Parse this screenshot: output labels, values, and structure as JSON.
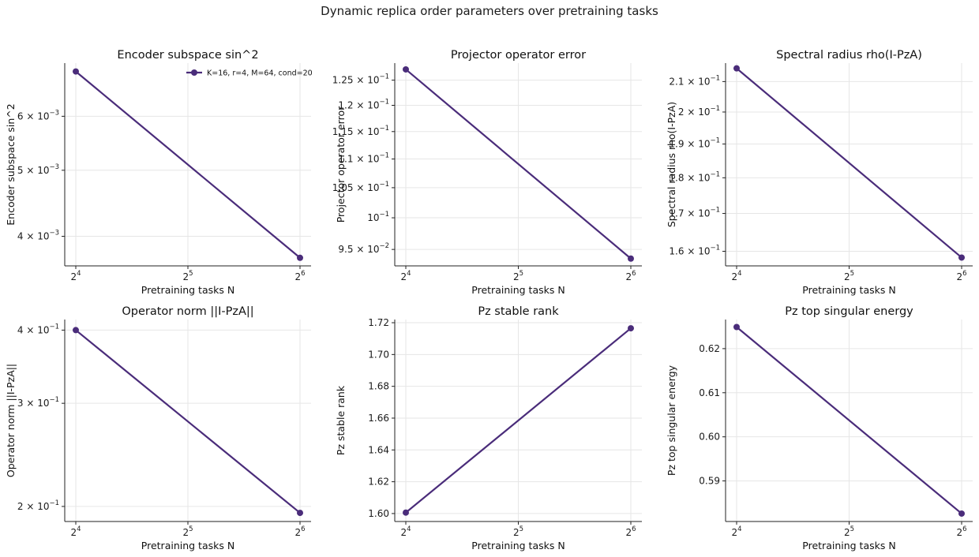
{
  "figure": {
    "title": "Dynamic replica order parameters over pretraining tasks",
    "line_color": "#4a2c7a"
  },
  "chart_data": [
    {
      "type": "line",
      "title": "Encoder subspace sin^2",
      "xlabel": "Pretraining tasks N",
      "ylabel": "Encoder subspace sin^2",
      "xscale": "log2",
      "yscale": "log",
      "xlim": [
        16,
        64
      ],
      "ylim": [
        0.00362,
        0.00718
      ],
      "grid": true,
      "legend_position": "top-right",
      "x_ticks": [
        {
          "value": 16,
          "base": "2",
          "exp": "4"
        },
        {
          "value": 32,
          "base": "2",
          "exp": "5"
        },
        {
          "value": 64,
          "base": "2",
          "exp": "6"
        }
      ],
      "y_ticks": [
        {
          "value": 0.006,
          "mant": "6",
          "base": "10",
          "exp": "−3"
        },
        {
          "value": 0.005,
          "mant": "5",
          "base": "10",
          "exp": "−3"
        },
        {
          "value": 0.004,
          "mant": "4",
          "base": "10",
          "exp": "−3"
        }
      ],
      "series": [
        {
          "name": "K=16, r=4, M=64, cond=20",
          "x": [
            16,
            64
          ],
          "y": [
            0.00698,
            0.00372
          ]
        }
      ]
    },
    {
      "type": "line",
      "title": "Projector operator error",
      "xlabel": "Pretraining tasks N",
      "ylabel": "Projector operator error",
      "xscale": "log2",
      "yscale": "log",
      "xlim": [
        16,
        64
      ],
      "ylim": [
        0.0925,
        0.1285
      ],
      "grid": true,
      "x_ticks": [
        {
          "value": 16,
          "base": "2",
          "exp": "4"
        },
        {
          "value": 32,
          "base": "2",
          "exp": "5"
        },
        {
          "value": 64,
          "base": "2",
          "exp": "6"
        }
      ],
      "y_ticks": [
        {
          "value": 0.125,
          "mant": "1.25",
          "base": "10",
          "exp": "−1"
        },
        {
          "value": 0.12,
          "mant": "1.2",
          "base": "10",
          "exp": "−1"
        },
        {
          "value": 0.115,
          "mant": "1.15",
          "base": "10",
          "exp": "−1"
        },
        {
          "value": 0.11,
          "mant": "1.1",
          "base": "10",
          "exp": "−1"
        },
        {
          "value": 0.105,
          "mant": "1.05",
          "base": "10",
          "exp": "−1"
        },
        {
          "value": 0.1,
          "mant": "",
          "base": "10",
          "exp": "−1"
        },
        {
          "value": 0.095,
          "mant": "9.5",
          "base": "10",
          "exp": "−2"
        }
      ],
      "series": [
        {
          "x": [
            16,
            64
          ],
          "y": [
            0.1272,
            0.0936
          ]
        }
      ]
    },
    {
      "type": "line",
      "title": "Spectral radius rho(I-PzA)",
      "xlabel": "Pretraining tasks N",
      "ylabel": "Spectral radius rho(I-PzA)",
      "xscale": "log2",
      "yscale": "log",
      "xlim": [
        16,
        64
      ],
      "ylim": [
        0.1563,
        0.2163
      ],
      "grid": true,
      "x_ticks": [
        {
          "value": 16,
          "base": "2",
          "exp": "4"
        },
        {
          "value": 32,
          "base": "2",
          "exp": "5"
        },
        {
          "value": 64,
          "base": "2",
          "exp": "6"
        }
      ],
      "y_ticks": [
        {
          "value": 0.21,
          "mant": "2.1",
          "base": "10",
          "exp": "−1"
        },
        {
          "value": 0.2,
          "mant": "2",
          "base": "10",
          "exp": "−1"
        },
        {
          "value": 0.19,
          "mant": "1.9",
          "base": "10",
          "exp": "−1"
        },
        {
          "value": 0.18,
          "mant": "1.8",
          "base": "10",
          "exp": "−1"
        },
        {
          "value": 0.17,
          "mant": "1.7",
          "base": "10",
          "exp": "−1"
        },
        {
          "value": 0.16,
          "mant": "1.6",
          "base": "10",
          "exp": "−1"
        }
      ],
      "series": [
        {
          "x": [
            16,
            64
          ],
          "y": [
            0.2145,
            0.1584
          ]
        }
      ]
    },
    {
      "type": "line",
      "title": "Operator norm ||I-PzA||",
      "xlabel": "Pretraining tasks N",
      "ylabel": "Operator norm ||I-PzA||",
      "xscale": "log2",
      "yscale": "log",
      "xlim": [
        16,
        64
      ],
      "ylim": [
        0.1885,
        0.417
      ],
      "grid": true,
      "x_ticks": [
        {
          "value": 16,
          "base": "2",
          "exp": "4"
        },
        {
          "value": 32,
          "base": "2",
          "exp": "5"
        },
        {
          "value": 64,
          "base": "2",
          "exp": "6"
        }
      ],
      "y_ticks": [
        {
          "value": 0.4,
          "mant": "4",
          "base": "10",
          "exp": "−1"
        },
        {
          "value": 0.3,
          "mant": "3",
          "base": "10",
          "exp": "−1"
        },
        {
          "value": 0.2,
          "mant": "2",
          "base": "10",
          "exp": "−1"
        }
      ],
      "series": [
        {
          "x": [
            16,
            64
          ],
          "y": [
            0.4,
            0.195
          ]
        }
      ]
    },
    {
      "type": "line",
      "title": "Pz stable rank",
      "xlabel": "Pretraining tasks N",
      "ylabel": "Pz stable rank",
      "xscale": "log2",
      "yscale": "linear",
      "xlim": [
        16,
        64
      ],
      "ylim": [
        1.595,
        1.722
      ],
      "grid": true,
      "x_ticks": [
        {
          "value": 16,
          "base": "2",
          "exp": "4"
        },
        {
          "value": 32,
          "base": "2",
          "exp": "5"
        },
        {
          "value": 64,
          "base": "2",
          "exp": "6"
        }
      ],
      "y_ticks": [
        {
          "value": 1.6,
          "label": "1.60"
        },
        {
          "value": 1.62,
          "label": "1.62"
        },
        {
          "value": 1.64,
          "label": "1.64"
        },
        {
          "value": 1.66,
          "label": "1.66"
        },
        {
          "value": 1.68,
          "label": "1.68"
        },
        {
          "value": 1.7,
          "label": "1.70"
        },
        {
          "value": 1.72,
          "label": "1.72"
        }
      ],
      "series": [
        {
          "x": [
            16,
            64
          ],
          "y": [
            1.6006,
            1.7165
          ]
        }
      ]
    },
    {
      "type": "line",
      "title": "Pz top singular energy",
      "xlabel": "Pretraining tasks N",
      "ylabel": "Pz top singular energy",
      "xscale": "log2",
      "yscale": "linear",
      "xlim": [
        16,
        64
      ],
      "ylim": [
        0.5808,
        0.6266
      ],
      "grid": true,
      "x_ticks": [
        {
          "value": 16,
          "base": "2",
          "exp": "4"
        },
        {
          "value": 32,
          "base": "2",
          "exp": "5"
        },
        {
          "value": 64,
          "base": "2",
          "exp": "6"
        }
      ],
      "y_ticks": [
        {
          "value": 0.62,
          "label": "0.62"
        },
        {
          "value": 0.61,
          "label": "0.61"
        },
        {
          "value": 0.6,
          "label": "0.60"
        },
        {
          "value": 0.59,
          "label": "0.59"
        }
      ],
      "series": [
        {
          "x": [
            16,
            64
          ],
          "y": [
            0.6249,
            0.5826
          ]
        }
      ]
    }
  ]
}
